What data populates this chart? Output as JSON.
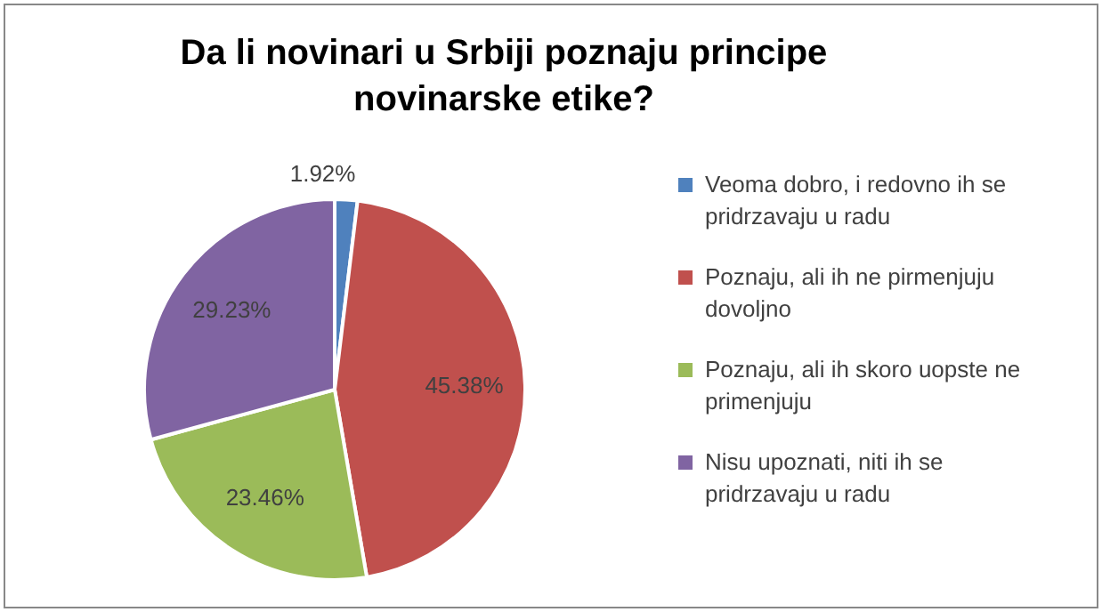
{
  "chart_data": {
    "type": "pie",
    "title": "Da li novinari u Srbiji poznaju principe novinarske etike?",
    "categories": [
      "Veoma dobro, i redovno ih se pridrzavaju u radu",
      "Poznaju, ali ih ne pirmenjuju dovoljno",
      "Poznaju, ali ih skoro uopste ne primenjuju",
      "Nisu upoznati, niti ih se pridrzavaju u radu"
    ],
    "values": [
      1.92,
      45.38,
      23.46,
      29.23
    ],
    "colors": [
      "#4f81bd",
      "#c0504d",
      "#9bbb59",
      "#8064a2"
    ],
    "value_labels": [
      "1.92%",
      "45.38%",
      "23.46%",
      "29.23%"
    ],
    "legend": "right"
  }
}
